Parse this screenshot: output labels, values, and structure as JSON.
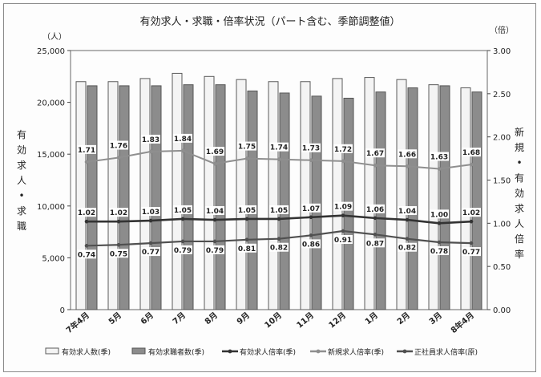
{
  "chart_data": {
    "type": "bar",
    "title": "有効求人・求職・倍率状況（パート含む、季節調整値）",
    "y_unit_left": "（人）",
    "y_unit_right": "（倍）",
    "ylabel_left": "有効求人・求職",
    "ylabel_right": "新規・有効求人倍率",
    "ylim_left": [
      0,
      25000
    ],
    "ylim_right": [
      0.0,
      3.0
    ],
    "yticks_left": [
      "0",
      "5,000",
      "10,000",
      "15,000",
      "20,000",
      "25,000"
    ],
    "yticks_right": [
      "0.00",
      "0.50",
      "1.00",
      "1.50",
      "2.00",
      "2.50",
      "3.00"
    ],
    "categories": [
      "7年4月",
      "5月",
      "6月",
      "7月",
      "8月",
      "9月",
      "10月",
      "11月",
      "12月",
      "1月",
      "2月",
      "3月",
      "8年4月"
    ],
    "bar_series": [
      {
        "name": "有効求人数(季)",
        "values": [
          22000,
          22000,
          22300,
          22800,
          22500,
          22200,
          22000,
          22000,
          22300,
          22400,
          22200,
          21700,
          21400
        ]
      },
      {
        "name": "有効求職者数(季)",
        "values": [
          21600,
          21600,
          21600,
          21700,
          21700,
          21100,
          20900,
          20600,
          20400,
          21000,
          21400,
          21600,
          21000
        ]
      }
    ],
    "line_series": [
      {
        "name": "有効求人倍率(季)",
        "values": [
          1.02,
          1.02,
          1.03,
          1.05,
          1.04,
          1.05,
          1.05,
          1.07,
          1.09,
          1.06,
          1.04,
          1.0,
          1.02
        ],
        "labels": [
          "1.02",
          "1.02",
          "1.03",
          "1.05",
          "1.04",
          "1.05",
          "1.05",
          "1.07",
          "1.09",
          "1.06",
          "1.04",
          "1.00",
          "1.02"
        ]
      },
      {
        "name": "新規求人倍率(季)",
        "values": [
          1.71,
          1.76,
          1.83,
          1.84,
          1.69,
          1.75,
          1.74,
          1.73,
          1.72,
          1.67,
          1.66,
          1.63,
          1.68
        ],
        "labels": [
          "1.71",
          "1.76",
          "1.83",
          "1.84",
          "1.69",
          "1.75",
          "1.74",
          "1.73",
          "1.72",
          "1.67",
          "1.66",
          "1.63",
          "1.68"
        ]
      },
      {
        "name": "正社員求人倍率(原)",
        "values": [
          0.74,
          0.75,
          0.77,
          0.79,
          0.79,
          0.81,
          0.82,
          0.86,
          0.91,
          0.87,
          0.82,
          0.78,
          0.77
        ],
        "labels": [
          "0.74",
          "0.75",
          "0.77",
          "0.79",
          "0.79",
          "0.81",
          "0.82",
          "0.86",
          "0.91",
          "0.87",
          "0.82",
          "0.78",
          "0.77"
        ]
      }
    ],
    "legend_position": "bottom",
    "grid": false
  },
  "colors": {
    "bar1_fill": "#f4f4f4",
    "bar1_stroke": "#5a5a5a",
    "bar2_fill": "#8c8c8c",
    "bar2_stroke": "#555555",
    "line_yukou": "#333333",
    "line_shinki": "#8f8f8f",
    "line_seisha": "#505050"
  }
}
